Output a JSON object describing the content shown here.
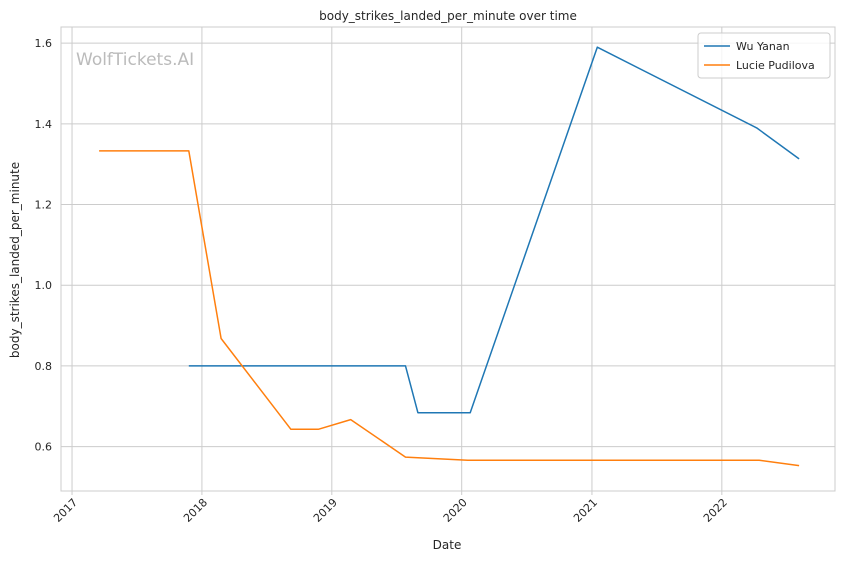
{
  "chart_data": {
    "type": "line",
    "title": "body_strikes_landed_per_minute over time",
    "xlabel": "Date",
    "ylabel": "body_strikes_landed_per_minute",
    "watermark": "WolfTickets.AI",
    "grid": true,
    "legend_position": "top-right",
    "x_ticks": [
      "2017",
      "2018",
      "2019",
      "2020",
      "2021",
      "2022"
    ],
    "y_ticks": [
      "0.6",
      "0.8",
      "1.0",
      "1.2",
      "1.4",
      "1.6"
    ],
    "xlim": [
      "2016-12-01",
      "2022-11-15"
    ],
    "ylim": [
      0.49,
      1.64
    ],
    "series": [
      {
        "name": "Wu Yanan",
        "color": "#1f77b4",
        "points": [
          [
            "2017-11-25",
            0.8
          ],
          [
            "2019-07-27",
            0.8
          ],
          [
            "2019-08-31",
            0.684
          ],
          [
            "2020-01-25",
            0.684
          ],
          [
            "2021-01-16",
            1.59
          ],
          [
            "2022-04-09",
            1.39
          ],
          [
            "2022-08-06",
            1.313
          ]
        ]
      },
      {
        "name": "Lucie Pudilova",
        "color": "#ff7f0e",
        "points": [
          [
            "2017-03-18",
            1.333
          ],
          [
            "2017-11-25",
            1.333
          ],
          [
            "2018-02-24",
            0.868
          ],
          [
            "2018-09-08",
            0.643
          ],
          [
            "2018-11-24",
            0.643
          ],
          [
            "2019-02-23",
            0.667
          ],
          [
            "2019-07-27",
            0.574
          ],
          [
            "2020-01-18",
            0.566
          ],
          [
            "2022-04-16",
            0.566
          ],
          [
            "2022-08-06",
            0.553
          ]
        ]
      }
    ]
  }
}
